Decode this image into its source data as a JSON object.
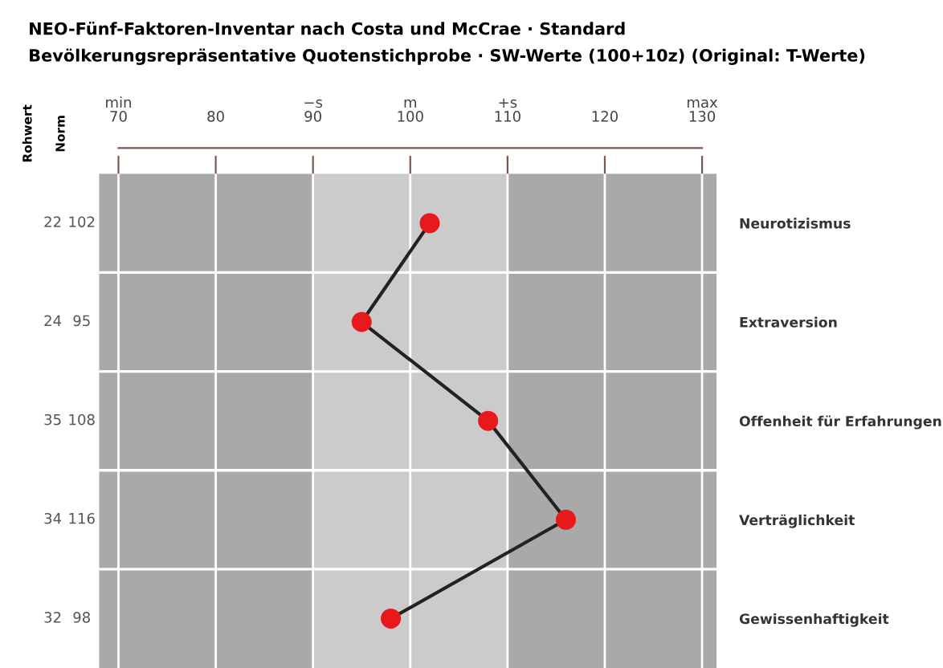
{
  "chart_data": {
    "type": "line",
    "orientation": "horizontal",
    "title": "NEO-Fünf-Faktoren-Inventar nach Costa und McCrae · Standard",
    "subtitle": "Bevölkerungsrepräsentative Quotenstichprobe · SW-Werte (100+10z) (Original: T-Werte)",
    "categories": [
      "Neurotizismus",
      "Extraversion",
      "Offenheit für Erfahrungen",
      "Verträglichkeit",
      "Gewissenhaftigkeit"
    ],
    "series": [
      {
        "color": "#e8191c",
        "values": [
          102,
          95,
          108,
          116,
          98
        ]
      }
    ],
    "marker": "circle",
    "grid": true,
    "xlim": [
      68,
      131.5
    ],
    "xticks": [
      {
        "value": 70,
        "label": "min\n70"
      },
      {
        "value": 80,
        "label": "80"
      },
      {
        "value": 90,
        "label": "−s\n90"
      },
      {
        "value": 100,
        "label": "m\n100"
      },
      {
        "value": 110,
        "label": "+s\n110"
      },
      {
        "value": 120,
        "label": "120"
      },
      {
        "value": 130,
        "label": "max\n130"
      }
    ],
    "bands": [
      {
        "axis": "x",
        "from": 68,
        "to": 90,
        "color": "#a9a9a9"
      },
      {
        "axis": "x",
        "from": 90,
        "to": 110,
        "color": "#cbcbcb"
      },
      {
        "axis": "x",
        "from": 110,
        "to": 131.5,
        "color": "#a9a9a9"
      }
    ],
    "annotations": [
      "Rohwert",
      "Norm",
      "22",
      "24",
      "35",
      "34",
      "32",
      "102",
      "95",
      "108",
      "116",
      "98"
    ]
  }
}
